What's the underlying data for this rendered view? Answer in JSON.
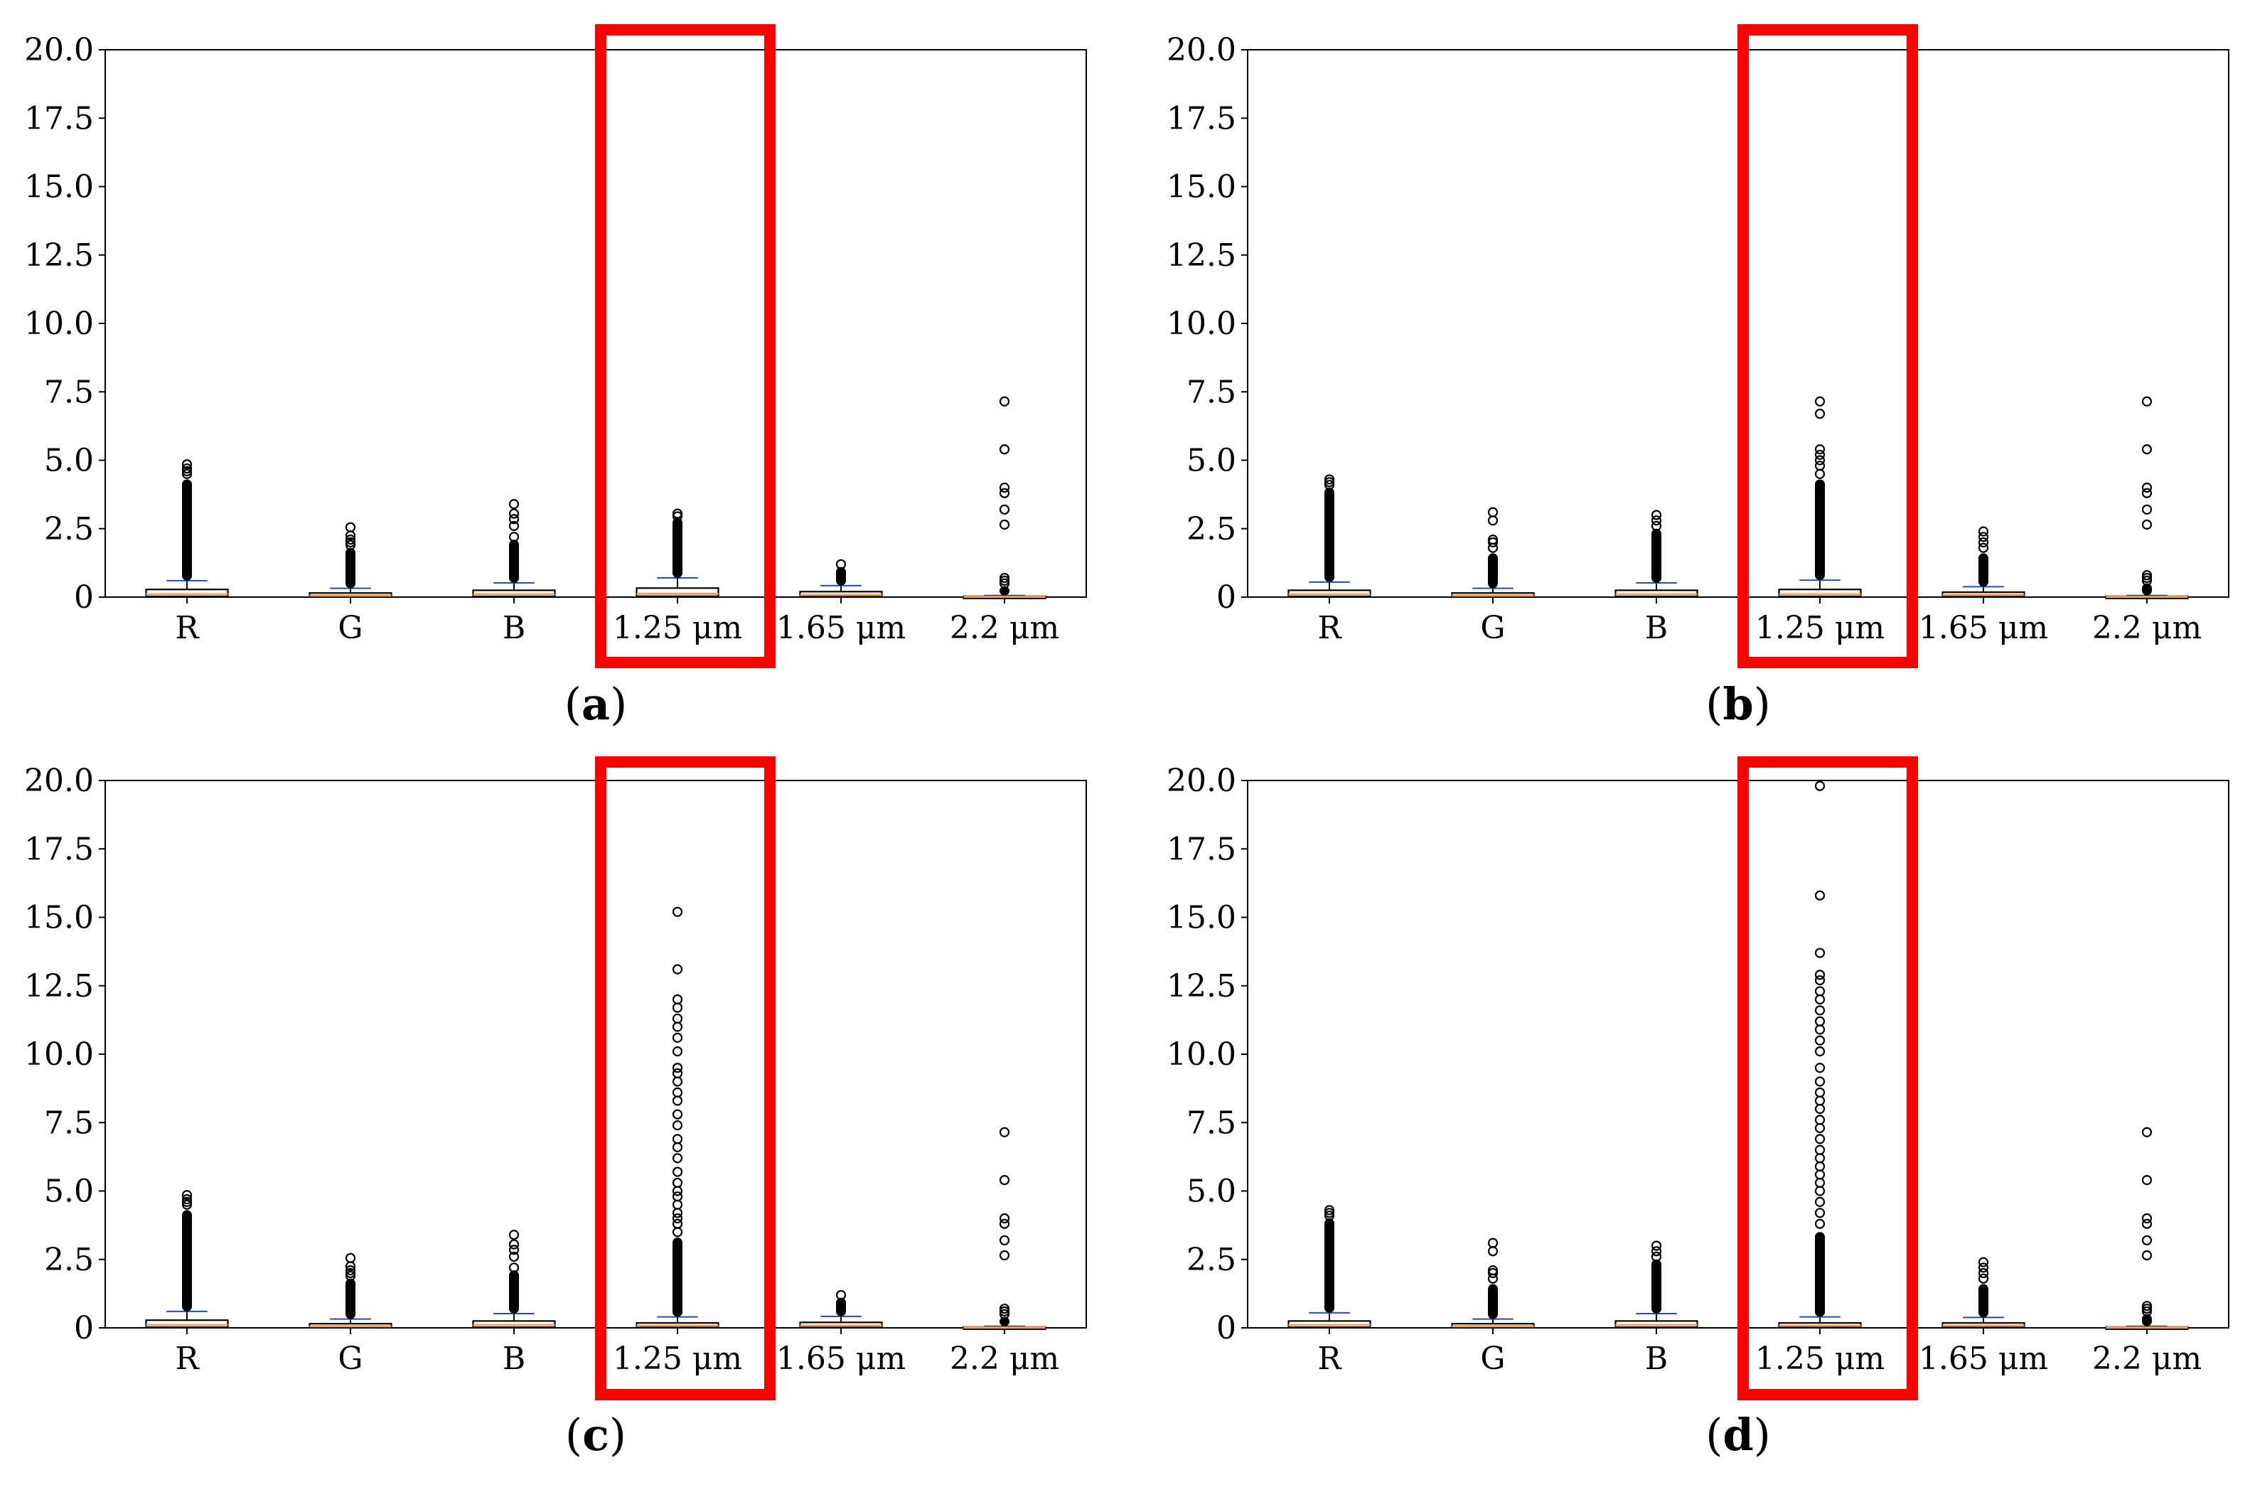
{
  "figure": {
    "colors": {
      "highlight": "#ff0000",
      "median": "#f5a05a",
      "cap": "#1f4fb0",
      "axis": "#000000"
    }
  },
  "chart_data": [
    {
      "id": "a",
      "panel_label": "a",
      "type": "boxplot",
      "categories": [
        "R",
        "G",
        "B",
        "1.25 μm",
        "1.65 μm",
        "2.2 μm"
      ],
      "highlighted_category": "1.25 μm",
      "ylim": [
        0,
        20
      ],
      "yticks": [
        "0",
        "2.5",
        "5.0",
        "7.5",
        "10.0",
        "12.5",
        "15.0",
        "17.5",
        "20.0"
      ],
      "ytick_values": [
        0,
        2.5,
        5.0,
        7.5,
        10.0,
        12.5,
        15.0,
        17.5,
        20.0
      ],
      "boxes": [
        {
          "q1": 0.02,
          "median": 0.1,
          "q3": 0.28,
          "whisker_high": 0.6,
          "flier_dense_max": 4.3,
          "fliers": [
            4.5,
            4.6,
            4.7,
            4.85
          ]
        },
        {
          "q1": 0.01,
          "median": 0.06,
          "q3": 0.15,
          "whisker_high": 0.32,
          "flier_dense_max": 1.8,
          "fliers": [
            1.9,
            2.0,
            2.1,
            2.25,
            2.55
          ]
        },
        {
          "q1": 0.02,
          "median": 0.1,
          "q3": 0.25,
          "whisker_high": 0.52,
          "flier_dense_max": 2.1,
          "fliers": [
            2.2,
            2.6,
            2.85,
            3.05,
            3.4
          ]
        },
        {
          "q1": 0.03,
          "median": 0.12,
          "q3": 0.33,
          "whisker_high": 0.7,
          "flier_dense_max": 2.9,
          "fliers": [
            2.95,
            3.05
          ]
        },
        {
          "q1": 0.02,
          "median": 0.08,
          "q3": 0.2,
          "whisker_high": 0.42,
          "flier_dense_max": 1.1,
          "fliers": [
            1.2
          ]
        },
        {
          "q1": 0.0,
          "median": 0.01,
          "q3": 0.03,
          "whisker_high": 0.06,
          "flier_dense_max": 0.4,
          "fliers": [
            0.5,
            0.6,
            0.7,
            2.65,
            3.2,
            3.8,
            4.0,
            5.4,
            7.15
          ]
        }
      ]
    },
    {
      "id": "b",
      "panel_label": "b",
      "type": "boxplot",
      "categories": [
        "R",
        "G",
        "B",
        "1.25 μm",
        "1.65 μm",
        "2.2 μm"
      ],
      "highlighted_category": "1.25 μm",
      "ylim": [
        0,
        20
      ],
      "yticks": [
        "0",
        "2.5",
        "5.0",
        "7.5",
        "10.0",
        "12.5",
        "15.0",
        "17.5",
        "20.0"
      ],
      "ytick_values": [
        0,
        2.5,
        5.0,
        7.5,
        10.0,
        12.5,
        15.0,
        17.5,
        20.0
      ],
      "boxes": [
        {
          "q1": 0.02,
          "median": 0.1,
          "q3": 0.25,
          "whisker_high": 0.55,
          "flier_dense_max": 4.0,
          "fliers": [
            4.1,
            4.2,
            4.3
          ]
        },
        {
          "q1": 0.01,
          "median": 0.06,
          "q3": 0.15,
          "whisker_high": 0.32,
          "flier_dense_max": 1.6,
          "fliers": [
            1.8,
            2.0,
            2.1,
            2.8,
            3.1
          ]
        },
        {
          "q1": 0.02,
          "median": 0.1,
          "q3": 0.25,
          "whisker_high": 0.52,
          "flier_dense_max": 2.5,
          "fliers": [
            2.6,
            2.8,
            3.0
          ]
        },
        {
          "q1": 0.02,
          "median": 0.1,
          "q3": 0.28,
          "whisker_high": 0.62,
          "flier_dense_max": 4.3,
          "fliers": [
            4.5,
            4.8,
            5.0,
            5.2,
            5.4,
            6.7,
            7.15
          ]
        },
        {
          "q1": 0.02,
          "median": 0.08,
          "q3": 0.18,
          "whisker_high": 0.38,
          "flier_dense_max": 1.6,
          "fliers": [
            1.8,
            2.0,
            2.2,
            2.4
          ]
        },
        {
          "q1": 0.0,
          "median": 0.01,
          "q3": 0.03,
          "whisker_high": 0.06,
          "flier_dense_max": 0.5,
          "fliers": [
            0.6,
            0.7,
            0.8,
            2.65,
            3.2,
            3.8,
            4.0,
            5.4,
            7.15
          ]
        }
      ]
    },
    {
      "id": "c",
      "panel_label": "c",
      "type": "boxplot",
      "categories": [
        "R",
        "G",
        "B",
        "1.25 μm",
        "1.65 μm",
        "2.2 μm"
      ],
      "highlighted_category": "1.25 μm",
      "ylim": [
        0,
        20
      ],
      "yticks": [
        "0",
        "2.5",
        "5.0",
        "7.5",
        "10.0",
        "12.5",
        "15.0",
        "17.5",
        "20.0"
      ],
      "ytick_values": [
        0,
        2.5,
        5.0,
        7.5,
        10.0,
        12.5,
        15.0,
        17.5,
        20.0
      ],
      "boxes": [
        {
          "q1": 0.02,
          "median": 0.1,
          "q3": 0.28,
          "whisker_high": 0.6,
          "flier_dense_max": 4.3,
          "fliers": [
            4.5,
            4.6,
            4.7,
            4.85
          ]
        },
        {
          "q1": 0.01,
          "median": 0.06,
          "q3": 0.15,
          "whisker_high": 0.32,
          "flier_dense_max": 1.8,
          "fliers": [
            1.9,
            2.0,
            2.1,
            2.25,
            2.55
          ]
        },
        {
          "q1": 0.02,
          "median": 0.1,
          "q3": 0.25,
          "whisker_high": 0.52,
          "flier_dense_max": 2.1,
          "fliers": [
            2.2,
            2.6,
            2.85,
            3.05,
            3.4
          ]
        },
        {
          "q1": 0.02,
          "median": 0.08,
          "q3": 0.18,
          "whisker_high": 0.4,
          "flier_dense_max": 3.3,
          "fliers": [
            3.5,
            3.8,
            4.0,
            4.2,
            4.5,
            4.8,
            5.0,
            5.3,
            5.7,
            6.2,
            6.6,
            6.9,
            7.4,
            7.8,
            8.3,
            8.6,
            9.0,
            9.3,
            9.5,
            10.1,
            10.6,
            11.0,
            11.3,
            11.7,
            12.0,
            13.1,
            15.2
          ]
        },
        {
          "q1": 0.02,
          "median": 0.08,
          "q3": 0.2,
          "whisker_high": 0.42,
          "flier_dense_max": 1.1,
          "fliers": [
            1.2
          ]
        },
        {
          "q1": 0.0,
          "median": 0.01,
          "q3": 0.03,
          "whisker_high": 0.06,
          "flier_dense_max": 0.4,
          "fliers": [
            0.5,
            0.6,
            0.7,
            2.65,
            3.2,
            3.8,
            4.0,
            5.4,
            7.15
          ]
        }
      ]
    },
    {
      "id": "d",
      "panel_label": "d",
      "type": "boxplot",
      "categories": [
        "R",
        "G",
        "B",
        "1.25 μm",
        "1.65 μm",
        "2.2 μm"
      ],
      "highlighted_category": "1.25 μm",
      "ylim": [
        0,
        20
      ],
      "yticks": [
        "0",
        "2.5",
        "5.0",
        "7.5",
        "10.0",
        "12.5",
        "15.0",
        "17.5",
        "20.0"
      ],
      "ytick_values": [
        0,
        2.5,
        5.0,
        7.5,
        10.0,
        12.5,
        15.0,
        17.5,
        20.0
      ],
      "boxes": [
        {
          "q1": 0.02,
          "median": 0.1,
          "q3": 0.25,
          "whisker_high": 0.55,
          "flier_dense_max": 4.0,
          "fliers": [
            4.1,
            4.2,
            4.3
          ]
        },
        {
          "q1": 0.01,
          "median": 0.06,
          "q3": 0.15,
          "whisker_high": 0.32,
          "flier_dense_max": 1.6,
          "fliers": [
            1.8,
            2.0,
            2.1,
            2.8,
            3.1
          ]
        },
        {
          "q1": 0.02,
          "median": 0.1,
          "q3": 0.25,
          "whisker_high": 0.52,
          "flier_dense_max": 2.5,
          "fliers": [
            2.6,
            2.8,
            3.0
          ]
        },
        {
          "q1": 0.02,
          "median": 0.08,
          "q3": 0.18,
          "whisker_high": 0.4,
          "flier_dense_max": 3.5,
          "fliers": [
            3.8,
            4.2,
            4.6,
            5.0,
            5.3,
            5.6,
            5.9,
            6.2,
            6.5,
            6.9,
            7.3,
            7.6,
            8.0,
            8.3,
            8.6,
            9.0,
            9.5,
            10.1,
            10.5,
            10.9,
            11.2,
            11.6,
            12.0,
            12.3,
            12.7,
            12.9,
            13.7,
            15.8,
            19.8
          ]
        },
        {
          "q1": 0.02,
          "median": 0.08,
          "q3": 0.18,
          "whisker_high": 0.38,
          "flier_dense_max": 1.6,
          "fliers": [
            1.8,
            2.0,
            2.2,
            2.4
          ]
        },
        {
          "q1": 0.0,
          "median": 0.01,
          "q3": 0.03,
          "whisker_high": 0.06,
          "flier_dense_max": 0.5,
          "fliers": [
            0.6,
            0.7,
            0.8,
            2.65,
            3.2,
            3.8,
            4.0,
            5.4,
            7.15
          ]
        }
      ]
    }
  ]
}
